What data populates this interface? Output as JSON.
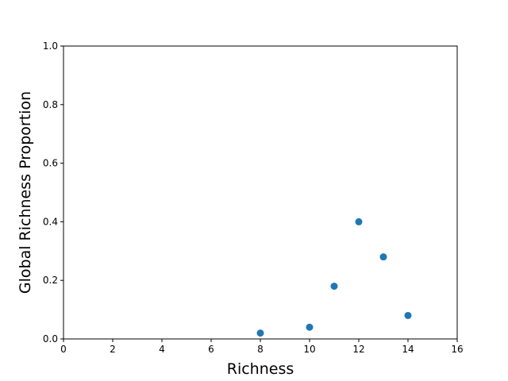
{
  "chart_data": {
    "type": "scatter",
    "title": "",
    "xlabel": "Richness",
    "ylabel": "Global Richness Proportion",
    "xlim": [
      0,
      16
    ],
    "ylim": [
      0.0,
      1.0
    ],
    "xticks": [
      0,
      2,
      4,
      6,
      8,
      10,
      12,
      14,
      16
    ],
    "yticks": [
      0.0,
      0.2,
      0.4,
      0.6,
      0.8,
      1.0
    ],
    "xtick_labels": [
      "0",
      "2",
      "4",
      "6",
      "8",
      "10",
      "12",
      "14",
      "16"
    ],
    "ytick_labels": [
      "0.0",
      "0.2",
      "0.4",
      "0.6",
      "0.8",
      "1.0"
    ],
    "grid": false,
    "marker_color": "#1f77b4",
    "points": [
      {
        "x": 8,
        "y": 0.02
      },
      {
        "x": 10,
        "y": 0.04
      },
      {
        "x": 11,
        "y": 0.18
      },
      {
        "x": 12,
        "y": 0.4
      },
      {
        "x": 13,
        "y": 0.28
      },
      {
        "x": 14,
        "y": 0.08
      }
    ]
  }
}
